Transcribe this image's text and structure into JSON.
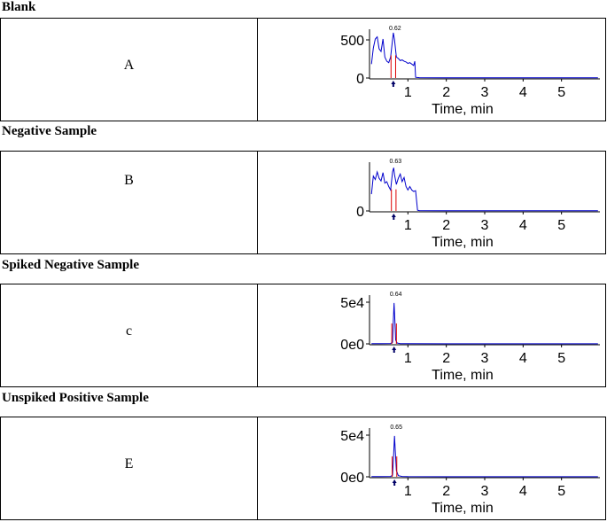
{
  "panels": [
    {
      "title": "Blank",
      "letter": "A"
    },
    {
      "title": "Negative Sample",
      "letter": "B"
    },
    {
      "title": "Spiked Negative Sample",
      "letter": "c"
    },
    {
      "title": "Unspiked Positive Sample",
      "letter": "E"
    }
  ],
  "chart_data": [
    {
      "type": "line",
      "xlabel": "Time, min",
      "xticks": [
        "1",
        "2",
        "3",
        "4",
        "5"
      ],
      "yticks": [
        "0",
        "500"
      ],
      "xlim": [
        0,
        6
      ],
      "ylim": [
        0,
        700
      ],
      "peak_label": "0.62",
      "marker_time": 0.62,
      "series": [
        {
          "x": [
            0.05,
            0.1,
            0.15,
            0.2,
            0.25,
            0.3,
            0.35,
            0.4,
            0.45,
            0.5,
            0.55,
            0.6,
            0.62,
            0.65,
            0.7,
            0.75,
            0.8,
            0.85,
            0.9,
            0.95,
            1.0,
            1.05,
            1.1,
            1.15,
            1.18,
            1.2,
            1.3,
            2,
            3,
            4,
            5,
            5.95
          ],
          "y": [
            200,
            430,
            560,
            590,
            420,
            380,
            560,
            300,
            240,
            220,
            300,
            550,
            650,
            550,
            300,
            280,
            250,
            260,
            240,
            230,
            210,
            220,
            200,
            180,
            240,
            10,
            5,
            3,
            4,
            3,
            4,
            3
          ],
          "color": "#0000cc"
        }
      ]
    },
    {
      "type": "line",
      "xlabel": "Time, min",
      "xticks": [
        "1",
        "2",
        "3",
        "4",
        "5"
      ],
      "yticks": [
        "0"
      ],
      "xlim": [
        0,
        6
      ],
      "ylim": [
        0,
        700
      ],
      "peak_label": "0.63",
      "marker_time": 0.63,
      "series": [
        {
          "x": [
            0.05,
            0.1,
            0.15,
            0.2,
            0.25,
            0.3,
            0.35,
            0.4,
            0.45,
            0.5,
            0.55,
            0.6,
            0.63,
            0.65,
            0.7,
            0.75,
            0.8,
            0.85,
            0.9,
            0.95,
            1.0,
            1.05,
            1.1,
            1.15,
            1.2,
            1.25,
            1.3,
            2,
            3,
            4,
            5,
            5.95
          ],
          "y": [
            240,
            500,
            450,
            560,
            470,
            430,
            550,
            400,
            420,
            350,
            300,
            560,
            620,
            520,
            380,
            470,
            530,
            420,
            480,
            350,
            300,
            350,
            300,
            280,
            290,
            10,
            5,
            3,
            4,
            3,
            4,
            3
          ],
          "color": "#0000cc"
        }
      ]
    },
    {
      "type": "line",
      "xlabel": "Time, min",
      "xticks": [
        "1",
        "2",
        "3",
        "4",
        "5"
      ],
      "yticks": [
        "0e0",
        "5e4"
      ],
      "xlim": [
        0,
        6
      ],
      "ylim": [
        0,
        62000
      ],
      "peak_label": "0.64",
      "marker_time": 0.64,
      "series": [
        {
          "x": [
            0.05,
            0.3,
            0.55,
            0.6,
            0.62,
            0.64,
            0.66,
            0.68,
            0.72,
            0.8,
            1.0,
            2,
            3,
            4,
            5,
            5.95
          ],
          "y": [
            300,
            300,
            400,
            2000,
            30000,
            52000,
            30000,
            5000,
            1000,
            300,
            200,
            150,
            150,
            150,
            150,
            150
          ],
          "color": "#0000cc"
        }
      ]
    },
    {
      "type": "line",
      "xlabel": "Time, min",
      "xticks": [
        "1",
        "2",
        "3",
        "4",
        "5"
      ],
      "yticks": [
        "0e0",
        "5e4"
      ],
      "xlim": [
        0,
        6
      ],
      "ylim": [
        0,
        62000
      ],
      "peak_label": "0.65",
      "marker_time": 0.65,
      "series": [
        {
          "x": [
            0.05,
            0.3,
            0.55,
            0.6,
            0.63,
            0.65,
            0.67,
            0.7,
            0.75,
            0.85,
            1.0,
            2,
            3,
            4,
            5,
            5.95
          ],
          "y": [
            300,
            300,
            400,
            2000,
            30000,
            52000,
            35000,
            8000,
            1500,
            500,
            200,
            150,
            150,
            150,
            150,
            150
          ],
          "color": "#0000cc"
        }
      ]
    }
  ]
}
